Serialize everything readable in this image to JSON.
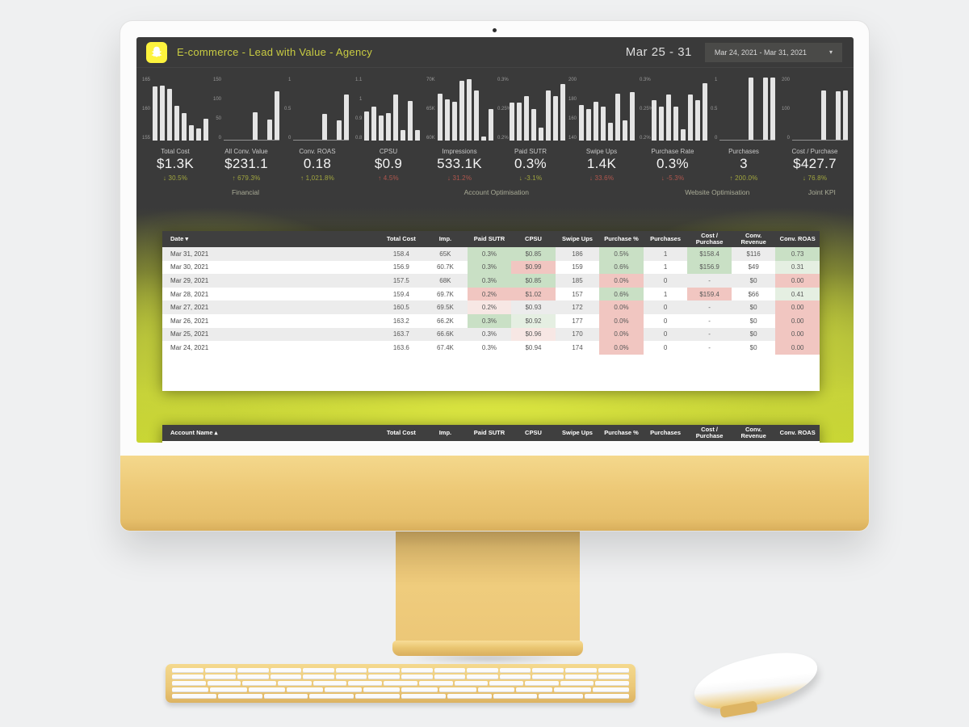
{
  "header": {
    "title": "E-commerce - Lead with Value - Agency",
    "date_label": "Mar 25 - 31",
    "date_range": "Mar 24, 2021 - Mar 31, 2021",
    "caret": "▾"
  },
  "colors": {
    "snap_yellow": "#fdf33d",
    "title_olive": "#c9cc42",
    "screen_dark": "#3a3a3a",
    "glow_lime": "#c9d634",
    "delta_good": "#a2a73f",
    "delta_bad": "#b2574e",
    "cell_green": "#c9e0c5",
    "cell_red": "#f1c6c1",
    "device_gold": "#ecc777"
  },
  "kpi_cards": [
    {
      "label": "Total Cost",
      "value": "$1.3K",
      "delta_arrow": "↓",
      "delta": "30.5%",
      "sentiment": "good",
      "axis": [
        "165",
        "160",
        "155"
      ],
      "axis_min": 155,
      "axis_max": 165,
      "baseline": false,
      "values": [
        163.6,
        163.7,
        163.2,
        160.5,
        159.4,
        157.5,
        156.9,
        158.4
      ]
    },
    {
      "label": "All Conv. Value",
      "value": "$231.1",
      "delta_arrow": "↑",
      "delta": "679.3%",
      "sentiment": "good",
      "axis": [
        "150",
        "100",
        "50",
        "0"
      ],
      "axis_min": 0,
      "axis_max": 150,
      "baseline": true,
      "values": [
        0,
        0,
        0,
        0,
        66,
        0,
        49,
        116
      ]
    },
    {
      "label": "Conv. ROAS",
      "value": "0.18",
      "delta_arrow": "↑",
      "delta": "1,021.8%",
      "sentiment": "good",
      "axis": [
        "1",
        "0.5",
        "0"
      ],
      "axis_min": 0,
      "axis_max": 1,
      "baseline": true,
      "values": [
        0,
        0,
        0,
        0,
        0.41,
        0,
        0.31,
        0.73
      ]
    },
    {
      "label": "CPSU",
      "value": "$0.9",
      "delta_arrow": "↑",
      "delta": "4.5%",
      "sentiment": "bad",
      "axis": [
        "1.1",
        "1",
        "0.9",
        "0.8"
      ],
      "axis_min": 0.8,
      "axis_max": 1.1,
      "baseline": false,
      "values": [
        0.94,
        0.96,
        0.92,
        0.93,
        1.02,
        0.85,
        0.99,
        0.85
      ]
    },
    {
      "label": "Impressions",
      "value": "533.1K",
      "delta_arrow": "↓",
      "delta": "31.2%",
      "sentiment": "bad",
      "axis": [
        "70K",
        "65K",
        "60K"
      ],
      "axis_min": 60,
      "axis_max": 70,
      "baseline": false,
      "values": [
        67.4,
        66.6,
        66.2,
        69.5,
        69.7,
        68,
        60.7,
        65
      ]
    },
    {
      "label": "Paid SUTR",
      "value": "0.3%",
      "delta_arrow": "↓",
      "delta": "-3.1%",
      "sentiment": "good",
      "axis": [
        "0.3%",
        "0.25%",
        "0.2%"
      ],
      "axis_min": 0.2,
      "axis_max": 0.3,
      "baseline": false,
      "values": [
        0.26,
        0.26,
        0.27,
        0.25,
        0.22,
        0.28,
        0.27,
        0.29
      ]
    },
    {
      "label": "Swipe Ups",
      "value": "1.4K",
      "delta_arrow": "↓",
      "delta": "33.6%",
      "sentiment": "bad",
      "axis": [
        "200",
        "180",
        "160",
        "140"
      ],
      "axis_min": 140,
      "axis_max": 200,
      "baseline": false,
      "values": [
        174,
        170,
        177,
        172,
        157,
        185,
        159,
        186
      ]
    },
    {
      "label": "Purchase Rate",
      "value": "0.3%",
      "delta_arrow": "↓",
      "delta": "-5.3%",
      "sentiment": "bad",
      "axis": [
        "0.3%",
        "0.25%",
        "0.2%"
      ],
      "axis_min": 0.2,
      "axis_max": 0.31,
      "baseline": false,
      "values": [
        0.27,
        0.26,
        0.28,
        0.26,
        0.22,
        0.28,
        0.27,
        0.3
      ]
    },
    {
      "label": "Purchases",
      "value": "3",
      "delta_arrow": "↑",
      "delta": "200.0%",
      "sentiment": "good",
      "axis": [
        "1",
        "0.5",
        "0"
      ],
      "axis_min": 0,
      "axis_max": 1,
      "baseline": true,
      "values": [
        0,
        0,
        0,
        0,
        1,
        0,
        1,
        1
      ]
    },
    {
      "label": "Cost / Purchase",
      "value": "$427.7",
      "delta_arrow": "↓",
      "delta": "76.8%",
      "sentiment": "good",
      "axis": [
        "200",
        "100",
        "0"
      ],
      "axis_min": 0,
      "axis_max": 200,
      "baseline": true,
      "values": [
        0,
        0,
        0,
        0,
        159.4,
        0,
        156.9,
        158.4
      ]
    }
  ],
  "tabs": [
    "Financial",
    "Account Optimisation",
    "Website Optimisation",
    "Joint KPI"
  ],
  "table": {
    "columns": [
      "Date ▾",
      "Total Cost",
      "Imp.",
      "Paid SUTR",
      "CPSU",
      "Swipe Ups",
      "Purchase %",
      "Purchases",
      "Cost / Purchase",
      "Conv. Revenue",
      "Conv. ROAS"
    ],
    "rows": [
      {
        "cells": [
          "Mar 31, 2021",
          "158.4",
          "65K",
          "0.3%",
          "$0.85",
          "186",
          "0.5%",
          "1",
          "$158.4",
          "$116",
          "0.73"
        ],
        "fmts": [
          "",
          "",
          "",
          "g",
          "g",
          "",
          "g",
          "",
          "g",
          "",
          "g"
        ]
      },
      {
        "cells": [
          "Mar 30, 2021",
          "156.9",
          "60.7K",
          "0.3%",
          "$0.99",
          "159",
          "0.6%",
          "1",
          "$156.9",
          "$49",
          "0.31"
        ],
        "fmts": [
          "",
          "",
          "",
          "g",
          "r",
          "",
          "g",
          "",
          "g",
          "",
          "lg"
        ]
      },
      {
        "cells": [
          "Mar 29, 2021",
          "157.5",
          "68K",
          "0.3%",
          "$0.85",
          "185",
          "0.0%",
          "0",
          "-",
          "$0",
          "0.00"
        ],
        "fmts": [
          "",
          "",
          "",
          "g",
          "g",
          "",
          "r",
          "",
          "",
          "",
          "r"
        ]
      },
      {
        "cells": [
          "Mar 28, 2021",
          "159.4",
          "69.7K",
          "0.2%",
          "$1.02",
          "157",
          "0.6%",
          "1",
          "$159.4",
          "$66",
          "0.41"
        ],
        "fmts": [
          "",
          "",
          "",
          "r",
          "r",
          "",
          "g",
          "",
          "r",
          "",
          "lg"
        ]
      },
      {
        "cells": [
          "Mar 27, 2021",
          "160.5",
          "69.5K",
          "0.2%",
          "$0.93",
          "172",
          "0.0%",
          "0",
          "-",
          "$0",
          "0.00"
        ],
        "fmts": [
          "",
          "",
          "",
          "lr",
          "",
          "",
          "r",
          "",
          "",
          "",
          "r"
        ]
      },
      {
        "cells": [
          "Mar 26, 2021",
          "163.2",
          "66.2K",
          "0.3%",
          "$0.92",
          "177",
          "0.0%",
          "0",
          "-",
          "$0",
          "0.00"
        ],
        "fmts": [
          "",
          "",
          "",
          "g",
          "lg",
          "",
          "r",
          "",
          "",
          "",
          "r"
        ]
      },
      {
        "cells": [
          "Mar 25, 2021",
          "163.7",
          "66.6K",
          "0.3%",
          "$0.96",
          "170",
          "0.0%",
          "0",
          "-",
          "$0",
          "0.00"
        ],
        "fmts": [
          "",
          "",
          "",
          "",
          "lr",
          "",
          "r",
          "",
          "",
          "",
          "r"
        ]
      },
      {
        "cells": [
          "Mar 24, 2021",
          "163.6",
          "67.4K",
          "0.3%",
          "$0.94",
          "174",
          "0.0%",
          "0",
          "-",
          "$0",
          "0.00"
        ],
        "fmts": [
          "",
          "",
          "",
          "",
          "",
          "",
          "r",
          "",
          "",
          "",
          "r"
        ]
      }
    ]
  },
  "account_table": {
    "columns": [
      "Account Name ▴",
      "Total Cost",
      "Imp.",
      "Paid SUTR",
      "CPSU",
      "Swipe Ups",
      "Purchase %",
      "Purchases",
      "Cost / Purchase",
      "Conv. Revenue",
      "Conv. ROAS"
    ]
  }
}
